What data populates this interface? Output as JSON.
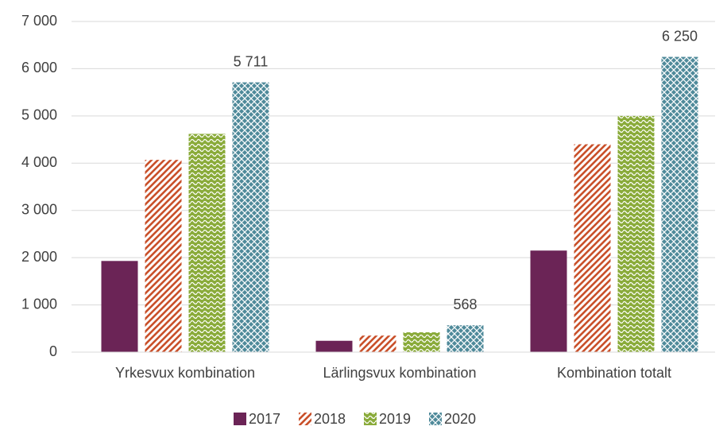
{
  "chart_data": {
    "type": "bar",
    "categories": [
      "Yrkesvux kombination",
      "Lärlingsvux kombination",
      "Kombination totalt"
    ],
    "series": [
      {
        "name": "2017",
        "color": "#6b2456",
        "values": [
          1930,
          240,
          2150
        ]
      },
      {
        "name": "2018",
        "color": "#c9502a",
        "values": [
          4070,
          350,
          4400
        ]
      },
      {
        "name": "2019",
        "color": "#8aab3a",
        "values": [
          4620,
          420,
          5000
        ]
      },
      {
        "name": "2020",
        "color": "#4f8a9a",
        "values": [
          5711,
          568,
          6250
        ],
        "value_labels": [
          "5 711",
          "568",
          "6 250"
        ]
      }
    ],
    "ylim": [
      0,
      7000
    ],
    "yticks": [
      0,
      {
        "value": 1000,
        "label": "1 000"
      },
      {
        "value": 2000,
        "label": "2 000"
      },
      {
        "value": 3000,
        "label": "3 000"
      },
      {
        "value": 4000,
        "label": "4 000"
      },
      {
        "value": 5000,
        "label": "5 000"
      },
      {
        "value": 6000,
        "label": "6 000"
      },
      {
        "value": 7000,
        "label": "7 000"
      }
    ],
    "grid": true,
    "legend": "bottom"
  }
}
